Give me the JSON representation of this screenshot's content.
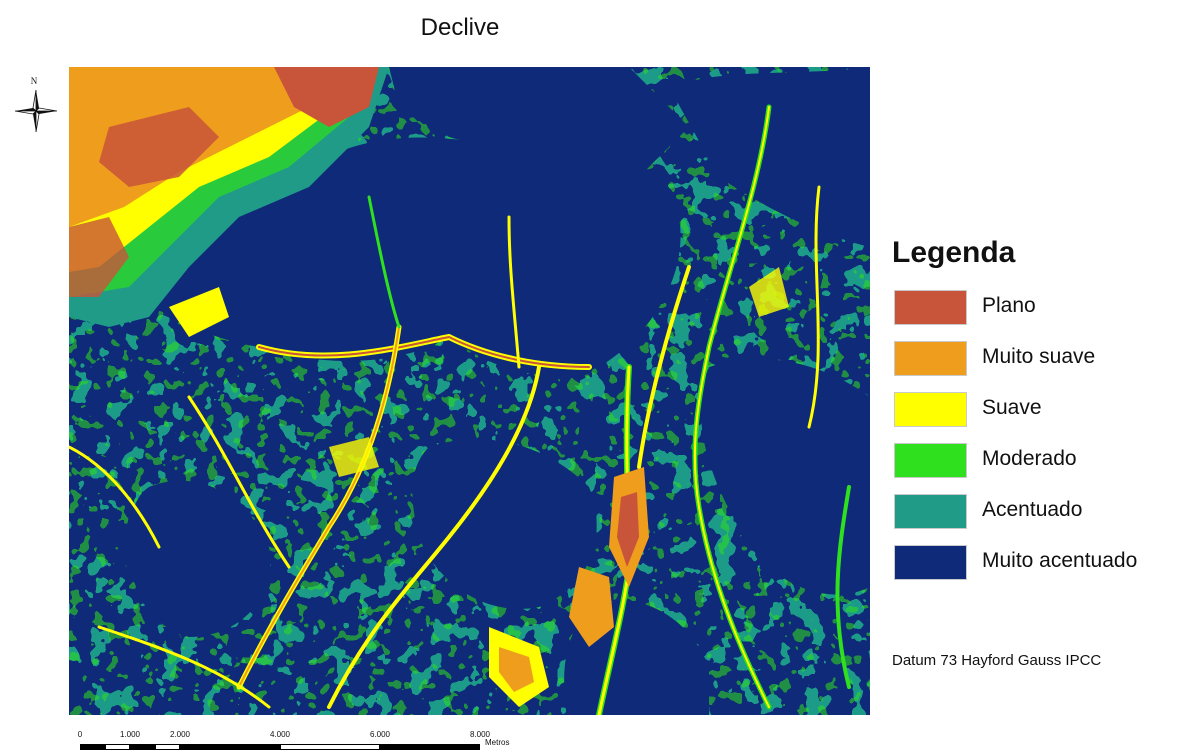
{
  "title": "Declive",
  "north_arrow": {
    "letter": "N"
  },
  "legend": {
    "title": "Legenda",
    "items": [
      {
        "label": "Plano",
        "color": "#c8553a"
      },
      {
        "label": "Muito suave",
        "color": "#ef9d1d"
      },
      {
        "label": "Suave",
        "color": "#ffff00"
      },
      {
        "label": "Moderado",
        "color": "#2ee01e"
      },
      {
        "label": "Acentuado",
        "color": "#1f9b88"
      },
      {
        "label": "Muito acentuado",
        "color": "#0f2a78"
      }
    ]
  },
  "datum_note": "Datum 73 Hayford Gauss IPCC",
  "scale_bar": {
    "ticks": [
      "0",
      "1.000",
      "2.000",
      "4.000",
      "6.000",
      "8.000"
    ],
    "unit": "Metros"
  }
}
